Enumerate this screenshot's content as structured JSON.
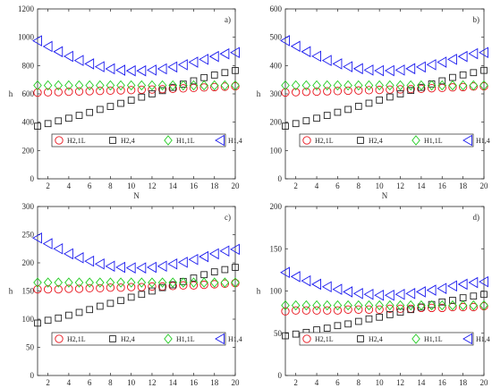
{
  "colors": {
    "H2,1L": "#e8141c",
    "H2,4": "#222222",
    "H1,1L": "#22cc22",
    "H1,4": "#1a1aee"
  },
  "chart_data": [
    {
      "type": "scatter",
      "panel_label": "a)",
      "xlabel": "N",
      "ylabel": "h",
      "xlim": [
        1,
        20
      ],
      "ylim": [
        0,
        1200
      ],
      "xticks": [
        2,
        4,
        6,
        8,
        10,
        12,
        14,
        16,
        18,
        20
      ],
      "yticks": [
        0,
        200,
        400,
        600,
        800,
        1000,
        1200
      ],
      "legend_position": "bottom",
      "x": [
        1,
        2,
        3,
        4,
        5,
        6,
        7,
        8,
        9,
        10,
        11,
        12,
        13,
        14,
        15,
        16,
        17,
        18,
        19,
        20
      ],
      "series": [
        {
          "name": "H2,1L",
          "marker": "circle",
          "values": [
            609,
            611,
            613,
            615,
            617,
            619,
            621,
            623,
            625,
            627,
            629,
            631,
            633,
            636,
            639,
            642,
            645,
            648,
            651,
            654
          ]
        },
        {
          "name": "H2,4",
          "marker": "square",
          "values": [
            372,
            390,
            409,
            428,
            448,
            469,
            490,
            511,
            533,
            555,
            577,
            600,
            623,
            646,
            669,
            692,
            715,
            733,
            750,
            765
          ]
        },
        {
          "name": "H1,1L",
          "marker": "diamond",
          "values": [
            660,
            660,
            660,
            660,
            660,
            660,
            660,
            660,
            660,
            660,
            660,
            660,
            660,
            660,
            660,
            660,
            660,
            660,
            660,
            660
          ]
        },
        {
          "name": "H1,4",
          "marker": "triangle-left",
          "values": [
            975,
            935,
            898,
            865,
            836,
            812,
            792,
            777,
            767,
            763,
            763,
            768,
            777,
            790,
            806,
            824,
            844,
            864,
            883,
            892
          ]
        }
      ]
    },
    {
      "type": "scatter",
      "panel_label": "b)",
      "xlabel": "N",
      "ylabel": "h",
      "xlim": [
        1,
        20
      ],
      "ylim": [
        0,
        600
      ],
      "xticks": [
        2,
        4,
        6,
        8,
        10,
        12,
        14,
        16,
        18,
        20
      ],
      "yticks": [
        0,
        100,
        200,
        300,
        400,
        500,
        600
      ],
      "legend_position": "bottom",
      "x": [
        1,
        2,
        3,
        4,
        5,
        6,
        7,
        8,
        9,
        10,
        11,
        12,
        13,
        14,
        15,
        16,
        17,
        18,
        19,
        20
      ],
      "series": [
        {
          "name": "H2,1L",
          "marker": "circle",
          "values": [
            305,
            306,
            307,
            308,
            309,
            310,
            311,
            312,
            313,
            314,
            315,
            316,
            317,
            318,
            320,
            321,
            323,
            324,
            326,
            327
          ]
        },
        {
          "name": "H2,4",
          "marker": "square",
          "values": [
            186,
            195,
            205,
            214,
            224,
            235,
            245,
            256,
            267,
            278,
            289,
            300,
            312,
            323,
            335,
            346,
            358,
            367,
            375,
            383
          ]
        },
        {
          "name": "H1,1L",
          "marker": "diamond",
          "values": [
            330,
            330,
            330,
            330,
            330,
            330,
            330,
            330,
            330,
            330,
            330,
            330,
            330,
            330,
            330,
            330,
            330,
            330,
            330,
            330
          ]
        },
        {
          "name": "H1,4",
          "marker": "triangle-left",
          "values": [
            488,
            468,
            449,
            433,
            418,
            406,
            396,
            389,
            384,
            382,
            382,
            384,
            389,
            395,
            403,
            412,
            422,
            432,
            442,
            446
          ]
        }
      ]
    },
    {
      "type": "scatter",
      "panel_label": "c)",
      "xlabel": "N",
      "ylabel": "h",
      "xlim": [
        1,
        20
      ],
      "ylim": [
        0,
        300
      ],
      "xticks": [
        2,
        4,
        6,
        8,
        10,
        12,
        14,
        16,
        18,
        20
      ],
      "yticks": [
        0,
        50,
        100,
        150,
        200,
        250,
        300
      ],
      "legend_position": "bottom",
      "x": [
        1,
        2,
        3,
        4,
        5,
        6,
        7,
        8,
        9,
        10,
        11,
        12,
        13,
        14,
        15,
        16,
        17,
        18,
        19,
        20
      ],
      "series": [
        {
          "name": "H2,1L",
          "marker": "circle",
          "values": [
            153,
            153,
            153,
            154,
            154,
            155,
            155,
            156,
            156,
            157,
            157,
            158,
            158,
            159,
            160,
            160,
            161,
            162,
            163,
            164
          ]
        },
        {
          "name": "H2,4",
          "marker": "square",
          "values": [
            93,
            98,
            102,
            107,
            112,
            117,
            123,
            128,
            133,
            139,
            144,
            150,
            156,
            161,
            167,
            173,
            179,
            184,
            188,
            192
          ]
        },
        {
          "name": "H1,1L",
          "marker": "diamond",
          "values": [
            165,
            165,
            165,
            165,
            165,
            165,
            165,
            165,
            165,
            165,
            165,
            165,
            165,
            165,
            165,
            165,
            165,
            165,
            165,
            165
          ]
        },
        {
          "name": "H1,4",
          "marker": "triangle-left",
          "values": [
            244,
            234,
            225,
            216,
            209,
            203,
            198,
            194,
            192,
            191,
            191,
            192,
            194,
            198,
            201,
            206,
            211,
            216,
            221,
            224
          ]
        }
      ]
    },
    {
      "type": "scatter",
      "panel_label": "d)",
      "xlabel": "N",
      "ylabel": "h",
      "xlim": [
        1,
        20
      ],
      "ylim": [
        0,
        200
      ],
      "xticks": [
        2,
        4,
        6,
        8,
        10,
        12,
        14,
        16,
        18,
        20
      ],
      "yticks": [
        0,
        50,
        100,
        150,
        200
      ],
      "legend_position": "bottom",
      "x": [
        1,
        2,
        3,
        4,
        5,
        6,
        7,
        8,
        9,
        10,
        11,
        12,
        13,
        14,
        15,
        16,
        17,
        18,
        19,
        20
      ],
      "series": [
        {
          "name": "H2,1L",
          "marker": "circle",
          "values": [
            76,
            77,
            77,
            77,
            77,
            77,
            78,
            78,
            78,
            78,
            79,
            79,
            79,
            80,
            80,
            80,
            81,
            81,
            81,
            82
          ]
        },
        {
          "name": "H2,4",
          "marker": "square",
          "values": [
            47,
            49,
            51,
            54,
            56,
            59,
            61,
            64,
            67,
            69,
            72,
            75,
            78,
            81,
            84,
            87,
            89,
            92,
            94,
            96
          ]
        },
        {
          "name": "H1,1L",
          "marker": "diamond",
          "values": [
            83,
            83,
            83,
            83,
            83,
            83,
            83,
            83,
            83,
            83,
            83,
            83,
            83,
            83,
            83,
            83,
            83,
            83,
            83,
            83
          ]
        },
        {
          "name": "H1,4",
          "marker": "triangle-left",
          "values": [
            122,
            117,
            112,
            108,
            105,
            102,
            99,
            97,
            96,
            95,
            95,
            96,
            97,
            99,
            101,
            103,
            106,
            108,
            110,
            111
          ]
        }
      ]
    }
  ]
}
